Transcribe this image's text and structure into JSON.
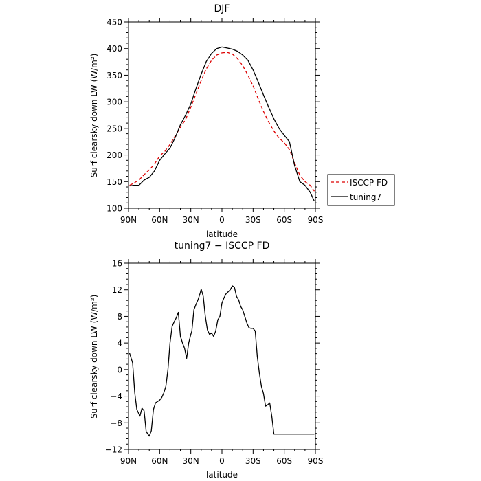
{
  "chart_data": [
    {
      "type": "line",
      "title": "DJF",
      "xlabel": "latitude",
      "ylabel": "Surf clearsky down LW (W/m²)",
      "xlim": [
        90,
        -90
      ],
      "ylim": [
        100,
        450
      ],
      "x_ticks": [
        90,
        60,
        30,
        0,
        -30,
        -60,
        -90
      ],
      "x_tick_labels": [
        "90N",
        "60N",
        "30N",
        "0",
        "30S",
        "60S",
        "90S"
      ],
      "y_ticks": [
        100,
        150,
        200,
        250,
        300,
        350,
        400,
        450
      ],
      "y_tick_labels": [
        "100",
        "150",
        "200",
        "250",
        "300",
        "350",
        "400",
        "450"
      ],
      "legend": {
        "placement": "right-outside",
        "entries": [
          "ISCCP FD",
          "tuning7"
        ]
      },
      "series": [
        {
          "name": "ISCCP FD",
          "color": "#dd0000",
          "dash": "dashed",
          "x": [
            89,
            85,
            80,
            75,
            70,
            65,
            60,
            55,
            50,
            45,
            40,
            35,
            30,
            25,
            20,
            15,
            10,
            5,
            0,
            -5,
            -10,
            -15,
            -20,
            -25,
            -30,
            -35,
            -40,
            -45,
            -50,
            -55,
            -60,
            -65,
            -70,
            -75,
            -80,
            -85,
            -89
          ],
          "y": [
            143,
            147,
            153,
            163,
            172,
            183,
            198,
            207,
            220,
            236,
            252,
            267,
            290,
            315,
            340,
            362,
            378,
            388,
            392,
            393,
            390,
            381,
            368,
            350,
            330,
            305,
            282,
            262,
            245,
            232,
            223,
            210,
            185,
            162,
            150,
            143,
            132
          ]
        },
        {
          "name": "tuning7",
          "color": "#000000",
          "dash": "solid",
          "x": [
            89,
            85,
            80,
            75,
            70,
            65,
            60,
            55,
            50,
            45,
            40,
            35,
            30,
            25,
            20,
            15,
            10,
            5,
            0,
            -5,
            -10,
            -15,
            -20,
            -25,
            -30,
            -35,
            -40,
            -45,
            -50,
            -55,
            -60,
            -65,
            -70,
            -75,
            -80,
            -85,
            -89
          ],
          "y": [
            142,
            143,
            143,
            153,
            158,
            170,
            190,
            202,
            213,
            233,
            257,
            275,
            296,
            325,
            352,
            376,
            391,
            400,
            403,
            401,
            399,
            395,
            388,
            378,
            360,
            337,
            313,
            290,
            268,
            250,
            237,
            225,
            180,
            150,
            143,
            130,
            113
          ]
        }
      ]
    },
    {
      "type": "line",
      "title": "tuning7 − ISCCP FD",
      "xlabel": "latitude",
      "ylabel": "Surf clearsky down LW (W/m²)",
      "xlim": [
        90,
        -90
      ],
      "ylim": [
        -12,
        16
      ],
      "x_ticks": [
        90,
        60,
        30,
        0,
        -30,
        -60,
        -90
      ],
      "x_tick_labels": [
        "90N",
        "60N",
        "30N",
        "0",
        "30S",
        "60S",
        "90S"
      ],
      "y_ticks": [
        -12,
        -8,
        -4,
        0,
        4,
        8,
        12,
        16
      ],
      "y_tick_labels": [
        "−12",
        "−8",
        "−4",
        "0",
        "4",
        "8",
        "12",
        "16"
      ],
      "series": [
        {
          "color": "#000000",
          "dash": "solid",
          "x": [
            89,
            86,
            84,
            82,
            79,
            77,
            75,
            73,
            70,
            68,
            66,
            64,
            62,
            60,
            58,
            56,
            54,
            52,
            50,
            48,
            46,
            44,
            42,
            40,
            38,
            36,
            34,
            32,
            30,
            29,
            27,
            25,
            23,
            21,
            20,
            18,
            16,
            14,
            12,
            10,
            8,
            6,
            4,
            2,
            0,
            -2,
            -4,
            -6,
            -8,
            -10,
            -12,
            -14,
            -16,
            -18,
            -20,
            -22,
            -24,
            -26,
            -28,
            -30,
            -32,
            -34,
            -36,
            -38,
            -40,
            -42,
            -44,
            -46,
            -48,
            -50,
            -52,
            -54,
            -56,
            -58,
            -60,
            -62,
            -64,
            -66,
            -68,
            -70,
            -72,
            -74,
            -76,
            -78,
            -80,
            -82,
            -84,
            -86,
            -88,
            -89
          ],
          "y": [
            2.5,
            1.0,
            -3.5,
            -6.0,
            -7.0,
            -5.8,
            -6.2,
            -9.3,
            -10.0,
            -9.2,
            -6.0,
            -5.0,
            -4.8,
            -4.6,
            -4.2,
            -3.5,
            -2.5,
            0.0,
            4.0,
            6.5,
            7.2,
            7.8,
            8.6,
            5.0,
            4.0,
            3.2,
            1.7,
            4.0,
            5.3,
            5.8,
            9.0,
            9.8,
            10.5,
            11.5,
            12.1,
            11.0,
            8.0,
            6.0,
            5.3,
            5.5,
            5.0,
            5.8,
            7.5,
            8.0,
            10.0,
            10.8,
            11.4,
            11.7,
            12.0,
            12.6,
            12.4,
            11.0,
            10.5,
            9.5,
            9.0,
            8.0,
            7.0,
            6.3,
            6.2,
            6.2,
            5.8,
            2.0,
            -0.5,
            -2.5,
            -3.6,
            -5.5,
            -5.3,
            -5.0,
            -7.0,
            -9.7,
            -9.7,
            -9.7,
            -9.7,
            -9.7,
            -9.7,
            -9.7,
            -9.7,
            -9.7,
            -9.7,
            -9.7,
            -9.7,
            -9.7,
            -9.7,
            -9.7,
            -9.7,
            -9.7,
            -9.7,
            -9.7,
            -9.7,
            -9.7
          ]
        }
      ]
    }
  ]
}
